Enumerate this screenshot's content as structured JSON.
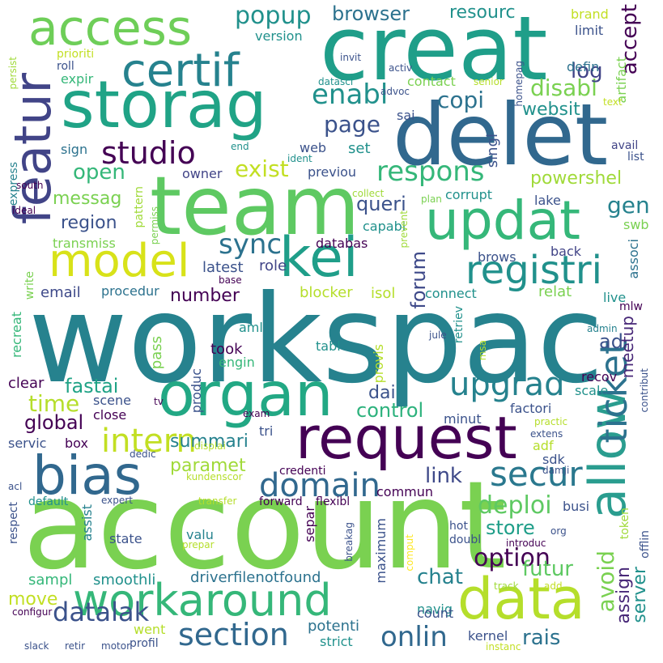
{
  "colors": [
    "#440154",
    "#482878",
    "#3e4989",
    "#31688e",
    "#26828e",
    "#1f9e89",
    "#35b779",
    "#6ece58",
    "#b5de2b",
    "#fde725"
  ],
  "words": [
    {
      "text": "workspac",
      "color": "#26828e"
    },
    {
      "text": "account",
      "color": "#7ad151"
    },
    {
      "text": "creat",
      "color": "#1f9e89"
    },
    {
      "text": "delet",
      "color": "#31688e"
    },
    {
      "text": "team",
      "color": "#5ec962"
    },
    {
      "text": "organ",
      "color": "#22a884"
    },
    {
      "text": "storag",
      "color": "#20a386"
    },
    {
      "text": "request",
      "color": "#440154"
    },
    {
      "text": "data",
      "color": "#b5de2b"
    },
    {
      "text": "allow",
      "color": "#2a9d8f"
    },
    {
      "text": "featur",
      "color": "#414487"
    },
    {
      "text": "updat",
      "color": "#35b779"
    },
    {
      "text": "bias",
      "color": "#31688e"
    },
    {
      "text": "workaround",
      "color": "#35b779"
    },
    {
      "text": "kei",
      "color": "#1f9e89"
    },
    {
      "text": "model",
      "color": "#d8e219"
    },
    {
      "text": "access",
      "color": "#6ece58"
    },
    {
      "text": "certif",
      "color": "#26828e"
    },
    {
      "text": "registri",
      "color": "#21918c"
    },
    {
      "text": "intern",
      "color": "#c2df23"
    },
    {
      "text": "ticket",
      "color": "#2c728e"
    },
    {
      "text": "upgrad",
      "color": "#26828e"
    },
    {
      "text": "studio",
      "color": "#440154"
    },
    {
      "text": "secur",
      "color": "#2a788e"
    },
    {
      "text": "respons",
      "color": "#35b779"
    },
    {
      "text": "domain",
      "color": "#31688e"
    },
    {
      "text": "section",
      "color": "#31688e"
    },
    {
      "text": "datalak",
      "color": "#3b528b"
    },
    {
      "text": "option",
      "color": "#440154"
    },
    {
      "text": "sync",
      "color": "#2c728e"
    },
    {
      "text": "enabl",
      "color": "#21918c"
    },
    {
      "text": "deploi",
      "color": "#5ec962"
    },
    {
      "text": "popup",
      "color": "#21918c"
    },
    {
      "text": "exist",
      "color": "#c2df23"
    },
    {
      "text": "accept",
      "color": "#440154"
    },
    {
      "text": "page",
      "color": "#3b528b"
    },
    {
      "text": "copi",
      "color": "#2c728e"
    },
    {
      "text": "onlin",
      "color": "#31688e"
    },
    {
      "text": "disabl",
      "color": "#7ad151"
    },
    {
      "text": "avoid",
      "color": "#7ad151"
    },
    {
      "text": "assign",
      "color": "#482878"
    },
    {
      "text": "parame",
      "color": "#6ece58"
    },
    {
      "text": "paramet",
      "color": "#a0da39"
    },
    {
      "text": "chat",
      "color": "#26828e"
    },
    {
      "text": "summari",
      "color": "#26828e"
    },
    {
      "text": "time",
      "color": "#b5de2b"
    },
    {
      "text": "fastai",
      "color": "#20a386"
    },
    {
      "text": "control",
      "color": "#2db27d"
    },
    {
      "text": "global",
      "color": "#440154"
    },
    {
      "text": "link",
      "color": "#3e4989"
    },
    {
      "text": "futur",
      "color": "#5ec962"
    },
    {
      "text": "move",
      "color": "#c2df23"
    },
    {
      "text": "store",
      "color": "#1f9e89"
    },
    {
      "text": "region",
      "color": "#3b528b"
    },
    {
      "text": "open",
      "color": "#35b779"
    },
    {
      "text": "messag",
      "color": "#7ad151"
    },
    {
      "text": "queri",
      "color": "#3b528b"
    },
    {
      "text": "forum",
      "color": "#3e4989"
    },
    {
      "text": "server",
      "color": "#21918c"
    },
    {
      "text": "rais",
      "color": "#2c728e"
    },
    {
      "text": "meetup",
      "color": "#482878"
    },
    {
      "text": "gen",
      "color": "#26828e"
    },
    {
      "text": "websit",
      "color": "#21918c"
    },
    {
      "text": "powershel",
      "color": "#a0da39"
    },
    {
      "text": "log",
      "color": "#414487"
    },
    {
      "text": "browser",
      "color": "#2c728e"
    },
    {
      "text": "resourc",
      "color": "#21918c"
    },
    {
      "text": "number",
      "color": "#440154"
    },
    {
      "text": "ad",
      "color": "#3b528b"
    },
    {
      "text": "dai",
      "color": "#3b528b"
    },
    {
      "text": "potenti",
      "color": "#2c728e"
    },
    {
      "text": "driverfilenotfound",
      "color": "#2c728e"
    },
    {
      "text": "smoothli",
      "color": "#21918c"
    },
    {
      "text": "sampl",
      "color": "#35b779"
    },
    {
      "text": "email",
      "color": "#3e4989"
    },
    {
      "text": "procedur",
      "color": "#2c728e"
    },
    {
      "text": "latest",
      "color": "#3b528b"
    },
    {
      "text": "role",
      "color": "#414487"
    },
    {
      "text": "took",
      "color": "#440154"
    },
    {
      "text": "tabl",
      "color": "#21918c"
    },
    {
      "text": "engin",
      "color": "#35b779"
    },
    {
      "text": "pass",
      "color": "#7ad151"
    },
    {
      "text": "produc",
      "color": "#3b528b"
    },
    {
      "text": "set",
      "color": "#21918c"
    },
    {
      "text": "web",
      "color": "#3b528b"
    },
    {
      "text": "previou",
      "color": "#3b528b"
    },
    {
      "text": "owner",
      "color": "#414487"
    },
    {
      "text": "version",
      "color": "#21918c"
    },
    {
      "text": "sign",
      "color": "#2c728e"
    },
    {
      "text": "expir",
      "color": "#35b779"
    },
    {
      "text": "roll",
      "color": "#3b528b"
    },
    {
      "text": "prioriti",
      "color": "#c2df23"
    },
    {
      "text": "invit",
      "color": "#3b528b"
    },
    {
      "text": "activ",
      "color": "#3b528b"
    },
    {
      "text": "datasci",
      "color": "#21918c"
    },
    {
      "text": "advoc",
      "color": "#3b528b"
    },
    {
      "text": "contact",
      "color": "#7ad151"
    },
    {
      "text": "senior",
      "color": "#b5de2b"
    },
    {
      "text": "homepag",
      "color": "#3b528b"
    },
    {
      "text": "brand",
      "color": "#c2df23"
    },
    {
      "text": "limit",
      "color": "#3b528b"
    },
    {
      "text": "defin",
      "color": "#2c728e"
    },
    {
      "text": "artifact",
      "color": "#7ad151"
    },
    {
      "text": "text",
      "color": "#c2df23"
    },
    {
      "text": "avail",
      "color": "#414487"
    },
    {
      "text": "list",
      "color": "#3b528b"
    },
    {
      "text": "sai",
      "color": "#3b528b"
    },
    {
      "text": "singl",
      "color": "#3b528b"
    },
    {
      "text": "end",
      "color": "#21918c"
    },
    {
      "text": "ident",
      "color": "#21918c"
    },
    {
      "text": "collect",
      "color": "#a0da39"
    },
    {
      "text": "plan",
      "color": "#7ad151"
    },
    {
      "text": "corrupt",
      "color": "#21918c"
    },
    {
      "text": "lake",
      "color": "#3b528b"
    },
    {
      "text": "south",
      "color": "#440154"
    },
    {
      "text": "ideal",
      "color": "#440154"
    },
    {
      "text": "express",
      "color": "#26828e"
    },
    {
      "text": "persist",
      "color": "#a0da39"
    },
    {
      "text": "permiss",
      "color": "#7ad151"
    },
    {
      "text": "pattern",
      "color": "#a0da39"
    },
    {
      "text": "transmiss",
      "color": "#7ad151"
    },
    {
      "text": "capabl",
      "color": "#21918c"
    },
    {
      "text": "databas",
      "color": "#440154"
    },
    {
      "text": "prevent",
      "color": "#a0da39"
    },
    {
      "text": "brows",
      "color": "#3b528b"
    },
    {
      "text": "back",
      "color": "#414487"
    },
    {
      "text": "swb",
      "color": "#7ad151"
    },
    {
      "text": "associ",
      "color": "#2c728e"
    },
    {
      "text": "relat",
      "color": "#7ad151"
    },
    {
      "text": "live",
      "color": "#21918c"
    },
    {
      "text": "mlw",
      "color": "#440154"
    },
    {
      "text": "connect",
      "color": "#21918c"
    },
    {
      "text": "isol",
      "color": "#b5de2b"
    },
    {
      "text": "blocker",
      "color": "#b5de2b"
    },
    {
      "text": "write",
      "color": "#7ad151"
    },
    {
      "text": "base",
      "color": "#440154"
    },
    {
      "text": "aml",
      "color": "#21918c"
    },
    {
      "text": "recreat",
      "color": "#35b779"
    },
    {
      "text": "clear",
      "color": "#440154"
    },
    {
      "text": "scene",
      "color": "#3b528b"
    },
    {
      "text": "close",
      "color": "#440154"
    },
    {
      "text": "tv",
      "color": "#440154"
    },
    {
      "text": "exam",
      "color": "#440154"
    },
    {
      "text": "tri",
      "color": "#3b528b"
    },
    {
      "text": "servic",
      "color": "#3b528b"
    },
    {
      "text": "box",
      "color": "#440154"
    },
    {
      "text": "dedic",
      "color": "#3b528b"
    },
    {
      "text": "displai",
      "color": "#b5de2b"
    },
    {
      "text": "kundenscor",
      "color": "#b5de2b"
    },
    {
      "text": "credenti",
      "color": "#440154"
    },
    {
      "text": "acl",
      "color": "#3b528b"
    },
    {
      "text": "expert",
      "color": "#3b528b"
    },
    {
      "text": "default",
      "color": "#21918c"
    },
    {
      "text": "respect",
      "color": "#3b528b"
    },
    {
      "text": "transfer",
      "color": "#b5de2b"
    },
    {
      "text": "forward",
      "color": "#440154"
    },
    {
      "text": "flexibl",
      "color": "#440154"
    },
    {
      "text": "assist",
      "color": "#26828e"
    },
    {
      "text": "state",
      "color": "#3b528b"
    },
    {
      "text": "valu",
      "color": "#26828e"
    },
    {
      "text": "prepar",
      "color": "#b5de2b"
    },
    {
      "text": "sepa",
      "color": "#440154"
    },
    {
      "text": "separ",
      "color": "#440154"
    },
    {
      "text": "breakag",
      "color": "#3b528b"
    },
    {
      "text": "maximum",
      "color": "#3b528b"
    },
    {
      "text": "comput",
      "color": "#fde725"
    },
    {
      "text": "hot",
      "color": "#3b528b"
    },
    {
      "text": "doubl",
      "color": "#3b528b"
    },
    {
      "text": "introduc",
      "color": "#440154"
    },
    {
      "text": "org",
      "color": "#3b528b"
    },
    {
      "text": "token",
      "color": "#a0da39"
    },
    {
      "text": "offlin",
      "color": "#3b528b"
    },
    {
      "text": "track",
      "color": "#a0da39"
    },
    {
      "text": "add",
      "color": "#c2df23"
    },
    {
      "text": "commun",
      "color": "#440154"
    },
    {
      "text": "busi",
      "color": "#3b528b"
    },
    {
      "text": "sdk",
      "color": "#3b528b"
    },
    {
      "text": "adf",
      "color": "#b5de2b"
    },
    {
      "text": "damji",
      "color": "#3b528b"
    },
    {
      "text": "extens",
      "color": "#3b528b"
    },
    {
      "text": "practic",
      "color": "#b5de2b"
    },
    {
      "text": "minut",
      "color": "#3b528b"
    },
    {
      "text": "factori",
      "color": "#3b528b"
    },
    {
      "text": "scale",
      "color": "#21918c"
    },
    {
      "text": "recov",
      "color": "#440154"
    },
    {
      "text": "contribut",
      "color": "#3b528b"
    },
    {
      "text": "admin",
      "color": "#26828e"
    },
    {
      "text": "msa",
      "color": "#b5de2b"
    },
    {
      "text": "jule",
      "color": "#3b528b"
    },
    {
      "text": "retriev",
      "color": "#21918c"
    },
    {
      "text": "provis",
      "color": "#b5de2b"
    },
    {
      "text": "navig",
      "color": "#21918c"
    },
    {
      "text": "count",
      "color": "#3b528b"
    },
    {
      "text": "kernel",
      "color": "#3b528b"
    },
    {
      "text": "instanc",
      "color": "#c2df23"
    },
    {
      "text": "strict",
      "color": "#21918c"
    },
    {
      "text": "went",
      "color": "#b5de2b"
    },
    {
      "text": "profil",
      "color": "#3b528b"
    },
    {
      "text": "motor",
      "color": "#3b528b"
    },
    {
      "text": "retir",
      "color": "#3b528b"
    },
    {
      "text": "slack",
      "color": "#3b528b"
    },
    {
      "text": "configur",
      "color": "#440154"
    }
  ]
}
